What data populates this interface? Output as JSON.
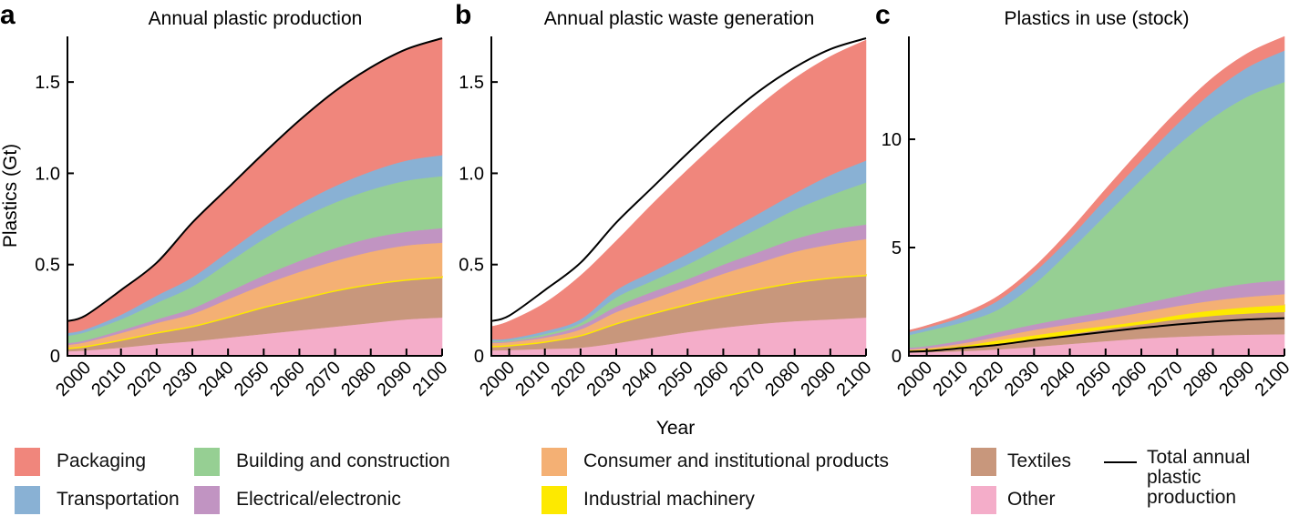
{
  "figure": {
    "x_axis_title": "Year",
    "y_axis_title": "Plastics (Gt)"
  },
  "legend": {
    "items": [
      {
        "key": "packaging",
        "label": "Packaging",
        "color": "#f0867c"
      },
      {
        "key": "transportation",
        "label": "Transportation",
        "color": "#89b1d4"
      },
      {
        "key": "building",
        "label": "Building and construction",
        "color": "#96cf93"
      },
      {
        "key": "electrical",
        "label": "Electrical/electronic",
        "color": "#c194c2"
      },
      {
        "key": "consumer",
        "label": "Consumer and institutional products",
        "color": "#f4b074"
      },
      {
        "key": "industrial",
        "label": "Industrial machinery",
        "color": "#fde900"
      },
      {
        "key": "textiles",
        "label": "Textiles",
        "color": "#c8977c"
      },
      {
        "key": "other",
        "label": "Other",
        "color": "#f4adc9"
      }
    ],
    "total_line": {
      "label_lines": [
        "Total annual",
        "plastic",
        "production"
      ],
      "color": "#000000"
    }
  },
  "chart_data": [
    {
      "type": "area",
      "stacked": true,
      "panel_letter": "a",
      "title": "Annual plastic production",
      "xlabel": "Year",
      "ylabel": "Plastics (Gt)",
      "xlim": [
        1995,
        2100
      ],
      "ylim": [
        0,
        1.75
      ],
      "x_ticks": [
        2000,
        2010,
        2020,
        2030,
        2040,
        2050,
        2060,
        2070,
        2080,
        2090,
        2100
      ],
      "y_ticks": [
        0,
        0.5,
        1.0,
        1.5
      ],
      "y_tick_labels": [
        "0",
        "0.5",
        "1.0",
        "1.5"
      ],
      "x": [
        1995,
        2000,
        2010,
        2020,
        2030,
        2040,
        2050,
        2060,
        2070,
        2080,
        2090,
        2100
      ],
      "series": [
        {
          "name": "Other",
          "key": "other",
          "values": [
            0.025,
            0.03,
            0.045,
            0.065,
            0.08,
            0.1,
            0.12,
            0.14,
            0.16,
            0.18,
            0.2,
            0.21
          ]
        },
        {
          "name": "Textiles",
          "key": "textiles",
          "values": [
            0.015,
            0.02,
            0.04,
            0.06,
            0.08,
            0.11,
            0.145,
            0.17,
            0.195,
            0.21,
            0.215,
            0.22
          ]
        },
        {
          "name": "Industrial machinery",
          "key": "industrial",
          "values": [
            0.005,
            0.005,
            0.005,
            0.005,
            0.005,
            0.005,
            0.005,
            0.005,
            0.005,
            0.005,
            0.005,
            0.005
          ]
        },
        {
          "name": "Consumer and institutional products",
          "key": "consumer",
          "values": [
            0.015,
            0.02,
            0.035,
            0.05,
            0.065,
            0.095,
            0.12,
            0.145,
            0.16,
            0.175,
            0.185,
            0.185
          ]
        },
        {
          "name": "Electrical/electronic",
          "key": "electrical",
          "values": [
            0.01,
            0.01,
            0.015,
            0.02,
            0.03,
            0.04,
            0.05,
            0.06,
            0.07,
            0.075,
            0.075,
            0.08
          ]
        },
        {
          "name": "Building and construction",
          "key": "building",
          "values": [
            0.04,
            0.045,
            0.06,
            0.09,
            0.12,
            0.16,
            0.2,
            0.23,
            0.25,
            0.265,
            0.28,
            0.285
          ]
        },
        {
          "name": "Transportation",
          "key": "transportation",
          "values": [
            0.015,
            0.015,
            0.025,
            0.04,
            0.05,
            0.06,
            0.07,
            0.08,
            0.09,
            0.1,
            0.11,
            0.115
          ]
        },
        {
          "name": "Packaging",
          "key": "packaging",
          "values": [
            0.065,
            0.075,
            0.135,
            0.18,
            0.3,
            0.35,
            0.4,
            0.46,
            0.52,
            0.57,
            0.61,
            0.64
          ]
        }
      ],
      "total_line": {
        "name": "Total annual plastic production",
        "values": [
          0.19,
          0.22,
          0.36,
          0.51,
          0.73,
          0.92,
          1.11,
          1.29,
          1.45,
          1.58,
          1.68,
          1.74
        ]
      }
    },
    {
      "type": "area",
      "stacked": true,
      "panel_letter": "b",
      "title": "Annual plastic waste generation",
      "xlabel": "Year",
      "ylabel": "",
      "xlim": [
        1995,
        2100
      ],
      "ylim": [
        0,
        1.75
      ],
      "x_ticks": [
        2000,
        2010,
        2020,
        2030,
        2040,
        2050,
        2060,
        2070,
        2080,
        2090,
        2100
      ],
      "y_ticks": [
        0,
        0.5,
        1.0,
        1.5
      ],
      "y_tick_labels": [
        "0",
        "0.5",
        "1.0",
        "1.5"
      ],
      "x": [
        1995,
        2000,
        2010,
        2020,
        2030,
        2040,
        2050,
        2060,
        2070,
        2080,
        2090,
        2100
      ],
      "series": [
        {
          "name": "Other",
          "key": "other",
          "values": [
            0.03,
            0.032,
            0.038,
            0.045,
            0.07,
            0.1,
            0.13,
            0.155,
            0.175,
            0.19,
            0.2,
            0.21
          ]
        },
        {
          "name": "Textiles",
          "key": "textiles",
          "values": [
            0.02,
            0.023,
            0.037,
            0.065,
            0.105,
            0.13,
            0.15,
            0.17,
            0.19,
            0.21,
            0.225,
            0.23
          ]
        },
        {
          "name": "Industrial machinery",
          "key": "industrial",
          "values": [
            0.005,
            0.005,
            0.005,
            0.005,
            0.005,
            0.005,
            0.005,
            0.005,
            0.005,
            0.005,
            0.005,
            0.005
          ]
        },
        {
          "name": "Consumer and institutional products",
          "key": "consumer",
          "values": [
            0.015,
            0.015,
            0.02,
            0.03,
            0.06,
            0.075,
            0.095,
            0.12,
            0.14,
            0.165,
            0.18,
            0.195
          ]
        },
        {
          "name": "Electrical/electronic",
          "key": "electrical",
          "values": [
            0.005,
            0.005,
            0.01,
            0.02,
            0.03,
            0.04,
            0.04,
            0.05,
            0.06,
            0.07,
            0.08,
            0.08
          ]
        },
        {
          "name": "Building and construction",
          "key": "building",
          "values": [
            0.005,
            0.005,
            0.01,
            0.015,
            0.05,
            0.06,
            0.08,
            0.1,
            0.13,
            0.16,
            0.19,
            0.23
          ]
        },
        {
          "name": "Transportation",
          "key": "transportation",
          "values": [
            0.01,
            0.01,
            0.015,
            0.02,
            0.04,
            0.05,
            0.06,
            0.07,
            0.08,
            0.09,
            0.11,
            0.12
          ]
        },
        {
          "name": "Packaging",
          "key": "packaging",
          "values": [
            0.07,
            0.095,
            0.155,
            0.24,
            0.27,
            0.37,
            0.46,
            0.53,
            0.59,
            0.63,
            0.65,
            0.66
          ]
        }
      ],
      "total_line": {
        "name": "Total annual plastic production",
        "values": [
          0.19,
          0.22,
          0.36,
          0.51,
          0.73,
          0.92,
          1.11,
          1.29,
          1.45,
          1.58,
          1.68,
          1.74
        ]
      }
    },
    {
      "type": "area",
      "stacked": true,
      "panel_letter": "c",
      "title": "Plastics in use (stock)",
      "xlabel": "Year",
      "ylabel": "",
      "xlim": [
        1995,
        2100
      ],
      "ylim": [
        0,
        14.75
      ],
      "x_ticks": [
        2000,
        2010,
        2020,
        2030,
        2040,
        2050,
        2060,
        2070,
        2080,
        2090,
        2100
      ],
      "y_ticks": [
        0,
        5,
        10
      ],
      "y_tick_labels": [
        "0",
        "5",
        "10"
      ],
      "x": [
        1995,
        2000,
        2010,
        2020,
        2030,
        2040,
        2050,
        2060,
        2070,
        2080,
        2090,
        2100
      ],
      "series": [
        {
          "name": "Other",
          "key": "other",
          "values": [
            0.15,
            0.17,
            0.22,
            0.3,
            0.42,
            0.55,
            0.68,
            0.8,
            0.88,
            0.94,
            0.98,
            1.0
          ]
        },
        {
          "name": "Textiles",
          "key": "textiles",
          "values": [
            0.07,
            0.09,
            0.16,
            0.25,
            0.36,
            0.47,
            0.58,
            0.68,
            0.82,
            0.93,
            1.0,
            1.05
          ]
        },
        {
          "name": "Industrial machinery",
          "key": "industrial",
          "values": [
            0.04,
            0.04,
            0.08,
            0.17,
            0.17,
            0.16,
            0.12,
            0.12,
            0.18,
            0.23,
            0.27,
            0.3
          ]
        },
        {
          "name": "Consumer and institutional products",
          "key": "consumer",
          "values": [
            0.04,
            0.06,
            0.12,
            0.16,
            0.25,
            0.28,
            0.34,
            0.4,
            0.42,
            0.45,
            0.48,
            0.5
          ]
        },
        {
          "name": "Electrical/electronic",
          "key": "electrical",
          "values": [
            0.08,
            0.09,
            0.14,
            0.22,
            0.25,
            0.3,
            0.33,
            0.4,
            0.45,
            0.55,
            0.62,
            0.65
          ]
        },
        {
          "name": "Building and construction",
          "key": "building",
          "values": [
            0.58,
            0.7,
            0.83,
            1.04,
            1.85,
            3.09,
            4.45,
            5.75,
            6.95,
            7.9,
            8.65,
            9.15
          ]
        },
        {
          "name": "Transportation",
          "key": "transportation",
          "values": [
            0.14,
            0.15,
            0.25,
            0.42,
            0.55,
            0.6,
            0.75,
            0.85,
            1.0,
            1.2,
            1.35,
            1.45
          ]
        },
        {
          "name": "Packaging",
          "key": "packaging",
          "values": [
            0.08,
            0.1,
            0.15,
            0.21,
            0.25,
            0.35,
            0.45,
            0.55,
            0.6,
            0.65,
            0.65,
            0.65
          ]
        }
      ],
      "total_line": {
        "name": "Total annual plastic production",
        "values": [
          0.19,
          0.22,
          0.36,
          0.51,
          0.73,
          0.92,
          1.11,
          1.29,
          1.45,
          1.58,
          1.68,
          1.74
        ]
      }
    }
  ]
}
